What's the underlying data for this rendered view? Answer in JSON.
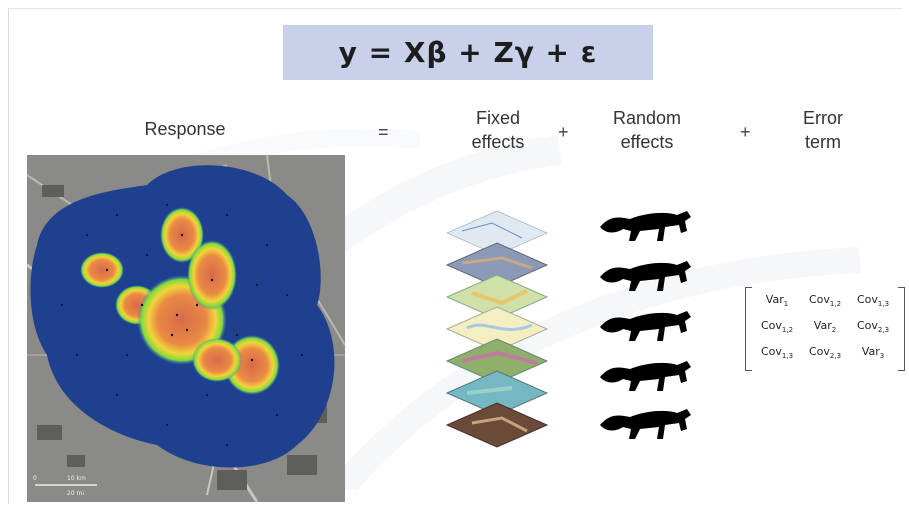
{
  "equation": "y = Xβ + Zγ + ε",
  "labels": {
    "response": "Response",
    "fixed": [
      "Fixed",
      "effects"
    ],
    "random": [
      "Random",
      "effects"
    ],
    "error": [
      "Error",
      "term"
    ]
  },
  "operators": {
    "equals": "=",
    "plus1": "+",
    "plus2": "+"
  },
  "matrix": [
    [
      {
        "base": "Var",
        "sub": "1"
      },
      {
        "base": "Cov",
        "sub": "1,2"
      },
      {
        "base": "Cov",
        "sub": "1,3"
      }
    ],
    [
      {
        "base": "Cov",
        "sub": "1,2"
      },
      {
        "base": "Var",
        "sub": "2"
      },
      {
        "base": "Cov",
        "sub": "2,3"
      }
    ],
    [
      {
        "base": "Cov",
        "sub": "1,3"
      },
      {
        "base": "Cov",
        "sub": "2,3"
      },
      {
        "base": "Var",
        "sub": "3"
      }
    ]
  ],
  "map_scale_labels": [
    "0",
    "10 km",
    "20 mi"
  ],
  "colors": {
    "equation_box": "#c9d1ea",
    "density_blue": "#1f3f8f",
    "hotspot": "#e0724a",
    "cat": "#000000"
  }
}
